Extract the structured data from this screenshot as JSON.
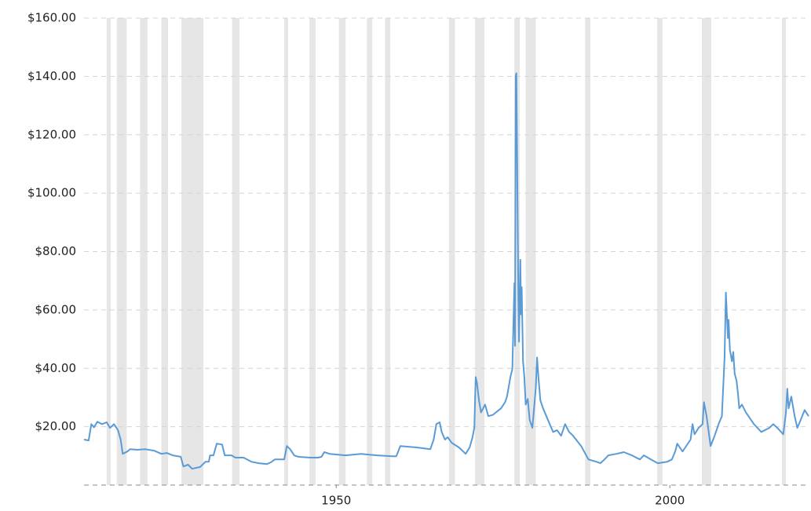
{
  "chart_data": {
    "type": "line",
    "x": [
      1912.2,
      1912.9,
      1913.3,
      1913.7,
      1914.2,
      1914.9,
      1915.6,
      1916.1,
      1916.7,
      1917.3,
      1917.7,
      1918.0,
      1918.7,
      1919.1,
      1920.2,
      1921.4,
      1922.7,
      1923.8,
      1924.6,
      1925.5,
      1926.7,
      1927.1,
      1927.8,
      1928.4,
      1929.6,
      1930.4,
      1930.9,
      1931.1,
      1931.6,
      1932.1,
      1932.9,
      1933.3,
      1934.3,
      1934.9,
      1936.1,
      1936.8,
      1937.3,
      1938.4,
      1939.6,
      1940.2,
      1940.8,
      1942.2,
      1942.6,
      1943.1,
      1943.7,
      1944.3,
      1946.1,
      1947.3,
      1947.8,
      1948.2,
      1949.0,
      1951.4,
      1953.7,
      1956.1,
      1958.4,
      1959.0,
      1959.6,
      1962.0,
      1964.1,
      1964.6,
      1965.0,
      1965.5,
      1965.8,
      1966.3,
      1966.7,
      1967.3,
      1968.4,
      1969.4,
      1970.0,
      1970.4,
      1970.7,
      1970.9,
      1971.1,
      1971.4,
      1971.7,
      1972.3,
      1972.8,
      1973.5,
      1974.7,
      1975.3,
      1975.6,
      1976.1,
      1976.4,
      1976.7,
      1976.8,
      1976.9,
      1977.0,
      1977.3,
      1977.4,
      1977.6,
      1977.7,
      1977.8,
      1978.0,
      1978.2,
      1978.4,
      1978.7,
      1979.0,
      1979.4,
      1979.6,
      1979.9,
      1980.1,
      1980.3,
      1980.6,
      1981.0,
      1982.0,
      1982.5,
      1983.1,
      1983.7,
      1984.3,
      1984.9,
      1985.5,
      1986.7,
      1987.8,
      1989.0,
      1989.6,
      1990.2,
      1990.8,
      1992.0,
      1993.1,
      1994.3,
      1995.5,
      1996.1,
      1997.3,
      1998.2,
      1999.6,
      2000.3,
      2000.8,
      2001.1,
      2001.9,
      2003.1,
      2003.4,
      2003.7,
      2004.3,
      2004.9,
      2005.1,
      2005.5,
      2006.1,
      2006.7,
      2007.3,
      2007.8,
      2008.2,
      2008.4,
      2008.7,
      2008.8,
      2009.0,
      2009.3,
      2009.5,
      2009.7,
      2010.0,
      2010.2,
      2010.4,
      2010.8,
      2011.4,
      2012.6,
      2013.7,
      2014.9,
      2015.5,
      2016.1,
      2017.0,
      2017.4,
      2017.6,
      2017.8,
      2018.2,
      2018.7,
      2019.1,
      2019.6,
      2020.2,
      2020.8
    ],
    "values": [
      15.6,
      15.3,
      20.9,
      19.8,
      21.7,
      20.9,
      21.5,
      19.6,
      20.9,
      18.8,
      15.6,
      10.7,
      11.5,
      12.3,
      12.1,
      12.3,
      11.8,
      10.7,
      11.0,
      10.2,
      9.7,
      6.4,
      7.0,
      5.6,
      6.2,
      8.0,
      8.0,
      10.2,
      10.2,
      14.2,
      13.9,
      10.2,
      10.2,
      9.4,
      9.4,
      8.6,
      8.0,
      7.5,
      7.2,
      7.8,
      8.8,
      8.8,
      13.4,
      12.3,
      10.2,
      9.7,
      9.4,
      9.4,
      9.7,
      11.3,
      10.7,
      10.2,
      10.7,
      10.2,
      9.9,
      9.9,
      13.4,
      12.9,
      12.3,
      15.6,
      20.9,
      21.5,
      18.2,
      15.6,
      16.4,
      14.5,
      12.9,
      10.7,
      12.9,
      16.1,
      19.6,
      37.0,
      34.9,
      29.0,
      24.9,
      27.6,
      23.6,
      24.1,
      26.3,
      28.4,
      30.3,
      37.0,
      39.7,
      69.2,
      47.7,
      140.3,
      141.1,
      63.8,
      49.1,
      77.2,
      58.5,
      67.8,
      42.4,
      37.0,
      27.6,
      29.5,
      22.3,
      19.6,
      24.9,
      33.0,
      43.7,
      37.0,
      29.0,
      26.3,
      20.9,
      18.2,
      18.8,
      16.9,
      20.9,
      18.2,
      16.9,
      13.4,
      8.8,
      8.0,
      7.5,
      8.8,
      10.2,
      10.7,
      11.3,
      10.2,
      8.8,
      10.2,
      8.6,
      7.5,
      8.0,
      8.8,
      11.5,
      14.2,
      11.5,
      15.6,
      20.9,
      17.4,
      19.6,
      20.9,
      28.4,
      23.6,
      13.4,
      16.9,
      20.9,
      23.6,
      43.7,
      66.0,
      50.4,
      56.6,
      46.4,
      42.4,
      45.6,
      38.3,
      35.7,
      31.6,
      26.3,
      27.6,
      24.9,
      20.9,
      18.2,
      19.6,
      20.9,
      19.6,
      17.4,
      24.9,
      33.0,
      26.3,
      30.3,
      23.6,
      19.6,
      22.3,
      25.7,
      23.6
    ],
    "color": "#5b9bd5",
    "recessions": [
      [
        1915.6,
        1916.2
      ],
      [
        1917.1,
        1918.6
      ],
      [
        1920.6,
        1921.7
      ],
      [
        1923.8,
        1924.8
      ],
      [
        1926.8,
        1930.1
      ],
      [
        1934.4,
        1935.5
      ],
      [
        1942.2,
        1942.8
      ],
      [
        1946.0,
        1946.9
      ],
      [
        1950.4,
        1951.4
      ],
      [
        1954.6,
        1955.4
      ],
      [
        1957.3,
        1958.1
      ],
      [
        1966.9,
        1967.8
      ],
      [
        1970.8,
        1972.2
      ],
      [
        1976.7,
        1977.5
      ],
      [
        1978.4,
        1979.9
      ],
      [
        1987.3,
        1988.1
      ],
      [
        1998.1,
        1998.9
      ],
      [
        2004.8,
        2006.2
      ],
      [
        2016.8,
        2017.4
      ]
    ],
    "recession_color": "#e6e6e6",
    "xlim": [
      1912.2,
      2020.8
    ],
    "xticks": [
      1950,
      2000
    ],
    "ylim": [
      0,
      160
    ],
    "yticks": [
      {
        "value": 20,
        "label": "$20.00"
      },
      {
        "value": 40,
        "label": "$40.00"
      },
      {
        "value": 60,
        "label": "$60.00"
      },
      {
        "value": 80,
        "label": "$80.00"
      },
      {
        "value": 100,
        "label": "$100.00"
      },
      {
        "value": 120,
        "label": "$120.00"
      },
      {
        "value": 140,
        "label": "$140.00"
      },
      {
        "value": 160,
        "label": "$160.00"
      }
    ],
    "grid": true
  }
}
